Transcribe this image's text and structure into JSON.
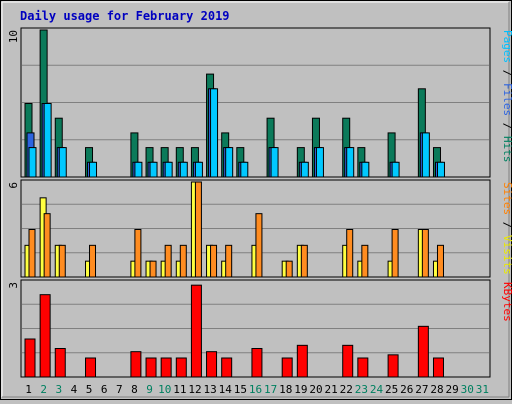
{
  "chart_data": {
    "type": "bar",
    "title": "Daily usage for February 2019",
    "categories": [
      "1",
      "2",
      "3",
      "4",
      "5",
      "6",
      "7",
      "8",
      "9",
      "10",
      "11",
      "12",
      "13",
      "14",
      "15",
      "16",
      "17",
      "18",
      "19",
      "20",
      "21",
      "22",
      "23",
      "24",
      "25",
      "26",
      "27",
      "28",
      "29",
      "30",
      "31"
    ],
    "weekend_days": [
      "2",
      "3",
      "9",
      "10",
      "16",
      "17",
      "23",
      "24",
      "30",
      "31"
    ],
    "panels": [
      {
        "id": "top",
        "ymax": 10,
        "ymax_label": "10",
        "right_labels": [
          {
            "text": "Pages",
            "color": "#00c0ff"
          },
          {
            "text": " / ",
            "color": "#000000"
          },
          {
            "text": "Files",
            "color": "#2d64e0"
          },
          {
            "text": " / ",
            "color": "#000000"
          },
          {
            "text": "Hits",
            "color": "#008060"
          }
        ],
        "series": [
          {
            "name": "Hits",
            "color": "#0b7a5a",
            "values": [
              5,
              10,
              4,
              0,
              2,
              0,
              0,
              3,
              2,
              2,
              2,
              2,
              7,
              3,
              2,
              0,
              4,
              0,
              2,
              4,
              0,
              4,
              2,
              0,
              3,
              0,
              6,
              2,
              0,
              0,
              0
            ]
          },
          {
            "name": "Files",
            "color": "#2d64e0",
            "values": [
              3,
              5,
              2,
              0,
              1,
              0,
              0,
              1,
              1,
              1,
              1,
              1,
              6,
              2,
              1,
              0,
              2,
              0,
              1,
              2,
              0,
              2,
              1,
              0,
              1,
              0,
              3,
              1,
              0,
              0,
              0
            ]
          },
          {
            "name": "Pages",
            "color": "#00c8ff",
            "values": [
              2,
              5,
              2,
              0,
              1,
              0,
              0,
              1,
              1,
              1,
              1,
              1,
              6,
              2,
              1,
              0,
              2,
              0,
              1,
              2,
              0,
              2,
              1,
              0,
              1,
              0,
              3,
              1,
              0,
              0,
              0
            ]
          }
        ]
      },
      {
        "id": "middle",
        "ymax": 6,
        "ymax_label": "6",
        "right_labels": [
          {
            "text": "Sites",
            "color": "#ff8000"
          },
          {
            "text": " / ",
            "color": "#000000"
          },
          {
            "text": "Visits",
            "color": "#e8e800"
          }
        ],
        "series": [
          {
            "name": "Visits",
            "color": "#ffff40",
            "values": [
              2,
              5,
              2,
              0,
              1,
              0,
              0,
              1,
              1,
              1,
              1,
              6,
              2,
              1,
              0,
              2,
              0,
              1,
              2,
              0,
              0,
              2,
              1,
              0,
              1,
              0,
              3,
              1,
              0,
              0,
              0
            ]
          },
          {
            "name": "Sites",
            "color": "#ff8c20",
            "values": [
              3,
              4,
              2,
              0,
              2,
              0,
              0,
              3,
              1,
              2,
              2,
              6,
              2,
              2,
              0,
              4,
              0,
              1,
              2,
              0,
              0,
              3,
              2,
              0,
              3,
              0,
              3,
              2,
              0,
              0,
              0
            ]
          }
        ]
      },
      {
        "id": "bottom",
        "ymax": 3,
        "ymax_label": "3",
        "right_labels": [
          {
            "text": "KBytes",
            "color": "#ff0000"
          }
        ],
        "series": [
          {
            "name": "KBytes",
            "color": "#ff0000",
            "values": [
              1.2,
              2.6,
              0.9,
              0,
              0.6,
              0,
              0,
              0.8,
              0.6,
              0.6,
              0.6,
              2.9,
              0.8,
              0.6,
              0,
              0.9,
              0,
              0.6,
              1,
              0,
              0,
              1,
              0.6,
              0,
              0.7,
              0,
              1.6,
              0.6,
              0,
              0,
              0
            ]
          }
        ]
      }
    ],
    "grid": true,
    "colors": {
      "background": "#c0c0c0",
      "grid": "#808080",
      "title": "#0000c0",
      "weekday_label": "#000000",
      "weekend_label": "#008060"
    }
  }
}
